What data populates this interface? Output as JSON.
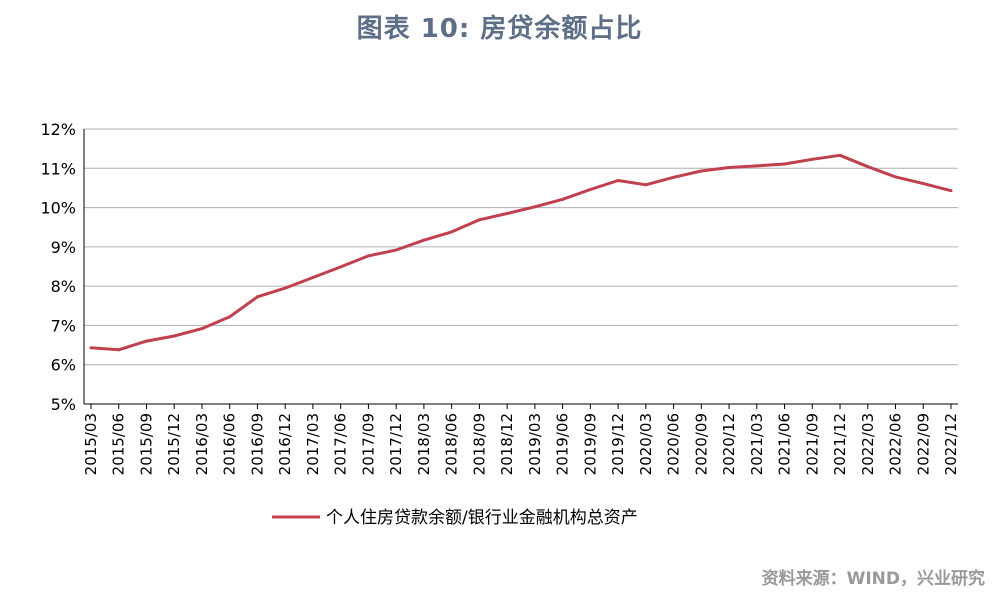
{
  "header": {
    "title": "图表 10: 房贷余额占比"
  },
  "footer": {
    "source": "资料来源：WIND，兴业研究"
  },
  "colors": {
    "series_line": "#c0404e",
    "grid": "#b0b0b0",
    "axis": "#000000",
    "title": "#5d6f86"
  },
  "chart_data": {
    "type": "line",
    "title": "图表 10: 房贷余额占比",
    "xlabel": "",
    "ylabel": "",
    "ylim": [
      5,
      12
    ],
    "yticks": [
      "5%",
      "6%",
      "7%",
      "8%",
      "9%",
      "10%",
      "11%",
      "12%"
    ],
    "grid": true,
    "legend_position": "bottom",
    "categories": [
      "2015/03",
      "2015/06",
      "2015/09",
      "2015/12",
      "2016/03",
      "2016/06",
      "2016/09",
      "2016/12",
      "2017/03",
      "2017/06",
      "2017/09",
      "2017/12",
      "2018/03",
      "2018/06",
      "2018/09",
      "2018/12",
      "2019/03",
      "2019/06",
      "2019/09",
      "2019/12",
      "2020/03",
      "2020/06",
      "2020/09",
      "2020/12",
      "2021/03",
      "2021/06",
      "2021/09",
      "2021/12",
      "2022/03",
      "2022/06",
      "2022/09",
      "2022/12"
    ],
    "series": [
      {
        "name": "个人住房贷款余额/银行业金融机构总资产",
        "values": [
          6.43,
          6.38,
          6.6,
          6.73,
          6.92,
          7.22,
          7.73,
          7.95,
          8.22,
          8.49,
          8.77,
          8.92,
          9.17,
          9.38,
          9.69,
          9.85,
          10.02,
          10.21,
          10.46,
          10.69,
          10.58,
          10.77,
          10.93,
          11.02,
          11.06,
          11.11,
          11.23,
          11.33,
          11.04,
          10.78,
          10.61,
          10.43
        ]
      }
    ]
  }
}
